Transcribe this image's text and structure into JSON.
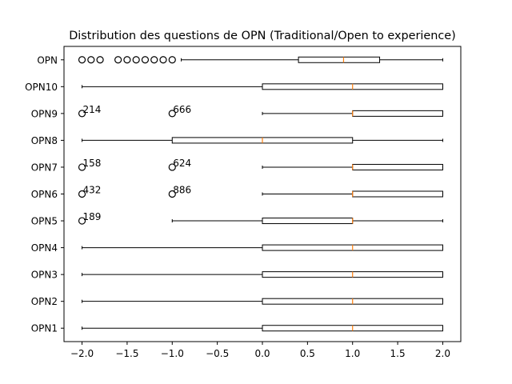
{
  "chart_data": {
    "type": "boxplot",
    "orientation": "horizontal",
    "title": "Distribution des questions de OPN (Traditional/Open to experience)",
    "xlabel": "",
    "ylabel": "",
    "xlim": [
      -2.2,
      2.2
    ],
    "xticks": [
      -2.0,
      -1.5,
      -1.0,
      -0.5,
      0.0,
      0.5,
      1.0,
      1.5,
      2.0
    ],
    "xtick_labels": [
      "−2.0",
      "−1.5",
      "−1.0",
      "−0.5",
      "0.0",
      "0.5",
      "1.0",
      "1.5",
      "2.0"
    ],
    "grid": false,
    "colors": {
      "box": "#000000",
      "median": "#ff7f0e",
      "flier": "#000000"
    },
    "categories": [
      "OPN1",
      "OPN2",
      "OPN3",
      "OPN4",
      "OPN5",
      "OPN6",
      "OPN7",
      "OPN8",
      "OPN9",
      "OPN10",
      "OPN"
    ],
    "series": [
      {
        "label": "OPN1",
        "whisker_low": -2,
        "q1": 0,
        "median": 1,
        "q3": 2,
        "whisker_high": 2,
        "fliers": []
      },
      {
        "label": "OPN2",
        "whisker_low": -2,
        "q1": 0,
        "median": 1,
        "q3": 2,
        "whisker_high": 2,
        "fliers": []
      },
      {
        "label": "OPN3",
        "whisker_low": -2,
        "q1": 0,
        "median": 1,
        "q3": 2,
        "whisker_high": 2,
        "fliers": []
      },
      {
        "label": "OPN4",
        "whisker_low": -2,
        "q1": 0,
        "median": 1,
        "q3": 2,
        "whisker_high": 2,
        "fliers": []
      },
      {
        "label": "OPN5",
        "whisker_low": -1,
        "q1": 0,
        "median": 1,
        "q3": 1,
        "whisker_high": 2,
        "fliers": [
          -2
        ]
      },
      {
        "label": "OPN6",
        "whisker_low": 0,
        "q1": 1,
        "median": 1,
        "q3": 2,
        "whisker_high": 2,
        "fliers": [
          -2,
          -1
        ]
      },
      {
        "label": "OPN7",
        "whisker_low": 0,
        "q1": 1,
        "median": 1,
        "q3": 2,
        "whisker_high": 2,
        "fliers": [
          -2,
          -1
        ]
      },
      {
        "label": "OPN8",
        "whisker_low": -2,
        "q1": -1,
        "median": 0,
        "q3": 1,
        "whisker_high": 2,
        "fliers": []
      },
      {
        "label": "OPN9",
        "whisker_low": 0,
        "q1": 1,
        "median": 1,
        "q3": 2,
        "whisker_high": 2,
        "fliers": [
          -2,
          -1
        ]
      },
      {
        "label": "OPN10",
        "whisker_low": -2,
        "q1": 0,
        "median": 1,
        "q3": 2,
        "whisker_high": 2,
        "fliers": []
      },
      {
        "label": "OPN",
        "whisker_low": -0.9,
        "q1": 0.4,
        "median": 0.9,
        "q3": 1.3,
        "whisker_high": 2,
        "fliers": [
          -2.0,
          -1.9,
          -1.8,
          -1.6,
          -1.5,
          -1.4,
          -1.3,
          -1.2,
          -1.1,
          -1.0
        ]
      }
    ],
    "annotations": [
      {
        "text": "214",
        "x": -2,
        "category": "OPN9"
      },
      {
        "text": "666",
        "x": -1,
        "category": "OPN9"
      },
      {
        "text": "158",
        "x": -2,
        "category": "OPN7"
      },
      {
        "text": "624",
        "x": -1,
        "category": "OPN7"
      },
      {
        "text": "432",
        "x": -2,
        "category": "OPN6"
      },
      {
        "text": "886",
        "x": -1,
        "category": "OPN6"
      },
      {
        "text": "189",
        "x": -2,
        "category": "OPN5"
      }
    ]
  }
}
